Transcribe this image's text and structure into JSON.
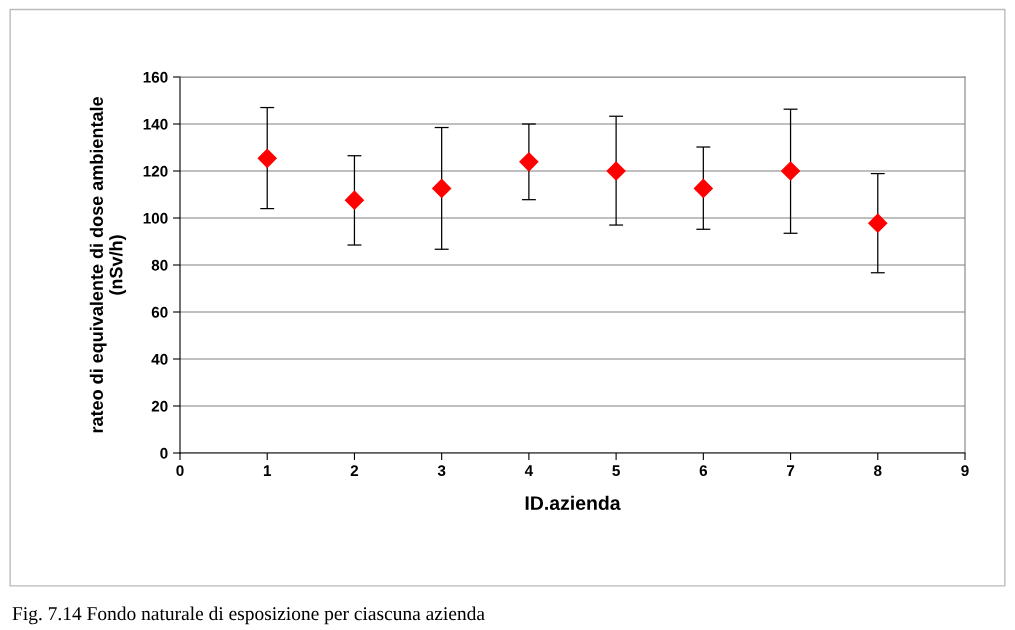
{
  "chart_data": {
    "type": "scatter",
    "xlabel": "ID.azienda",
    "ylabel": "rateo di equivalente di dose ambientale\n(nSv/h)",
    "x": [
      1,
      2,
      3,
      4,
      5,
      6,
      7,
      8
    ],
    "series": [
      {
        "color": "#ff0000",
        "values": [
          125.4,
          107.6,
          112.6,
          123.9,
          120,
          112.6,
          120,
          97.8
        ],
        "errors": [
          [
            104,
            147
          ],
          [
            88.5,
            126.5
          ],
          [
            86.7,
            138.5
          ],
          [
            107.8,
            140
          ],
          [
            97,
            143.3
          ],
          [
            95.2,
            130.2
          ],
          [
            93.5,
            146.3
          ],
          [
            76.7,
            118.9
          ]
        ]
      }
    ],
    "xlim": [
      0,
      9
    ],
    "xticks": [
      0,
      1,
      2,
      3,
      4,
      5,
      6,
      7,
      8,
      9
    ],
    "ylim": [
      0,
      160
    ],
    "yticks": [
      0,
      20,
      40,
      60,
      80,
      100,
      120,
      140,
      160
    ],
    "grid": "y",
    "marker": "diamond",
    "legend": false,
    "annotations": [
      "Fig. 7.14 Fondo naturale di esposizione per ciascuna azienda"
    ]
  }
}
